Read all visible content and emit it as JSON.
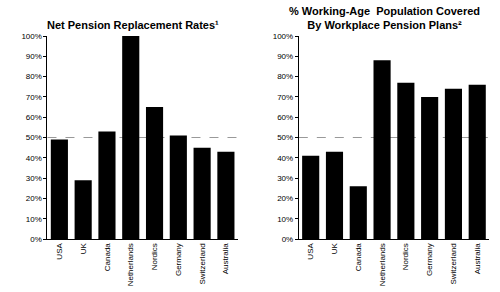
{
  "chart_data": [
    {
      "type": "bar",
      "title": "Net Pension Replacement Rates¹",
      "categories": [
        "USA",
        "UK",
        "Canada",
        "Netherlands",
        "Nordics",
        "Germany",
        "Switzerland",
        "Australia"
      ],
      "values": [
        49,
        29,
        53,
        100,
        65,
        51,
        45,
        43
      ],
      "color": "#000000",
      "ylim": [
        0,
        100
      ],
      "yticks": [
        {
          "value": 0,
          "label": "0%"
        },
        {
          "value": 10,
          "label": "10%"
        },
        {
          "value": 20,
          "label": "20%"
        },
        {
          "value": 30,
          "label": "30%"
        },
        {
          "value": 40,
          "label": "40%"
        },
        {
          "value": 50,
          "label": "50%"
        },
        {
          "value": 60,
          "label": "60%"
        },
        {
          "value": 70,
          "label": "70%"
        },
        {
          "value": 80,
          "label": "80%"
        },
        {
          "value": 90,
          "label": "90%"
        },
        {
          "value": 100,
          "label": "100%"
        }
      ],
      "reference_line": 50,
      "grid": false
    },
    {
      "type": "bar",
      "title": "% Working-Age  Population Covered\nBy Workplace Pension Plans²",
      "categories": [
        "USA",
        "UK",
        "Canada",
        "Netherlands",
        "Nordics",
        "Germany",
        "Switzerland",
        "Australia"
      ],
      "values": [
        41,
        43,
        26,
        88,
        77,
        70,
        74,
        76
      ],
      "color": "#000000",
      "ylim": [
        0,
        100
      ],
      "yticks": [
        {
          "value": 0,
          "label": "0%"
        },
        {
          "value": 10,
          "label": "10%"
        },
        {
          "value": 20,
          "label": "20%"
        },
        {
          "value": 30,
          "label": "30%"
        },
        {
          "value": 40,
          "label": "40%"
        },
        {
          "value": 50,
          "label": "50%"
        },
        {
          "value": 60,
          "label": "60%"
        },
        {
          "value": 70,
          "label": "70%"
        },
        {
          "value": 80,
          "label": "80%"
        },
        {
          "value": 90,
          "label": "90%"
        },
        {
          "value": 100,
          "label": "100%"
        }
      ],
      "reference_line": 50,
      "grid": false
    }
  ]
}
